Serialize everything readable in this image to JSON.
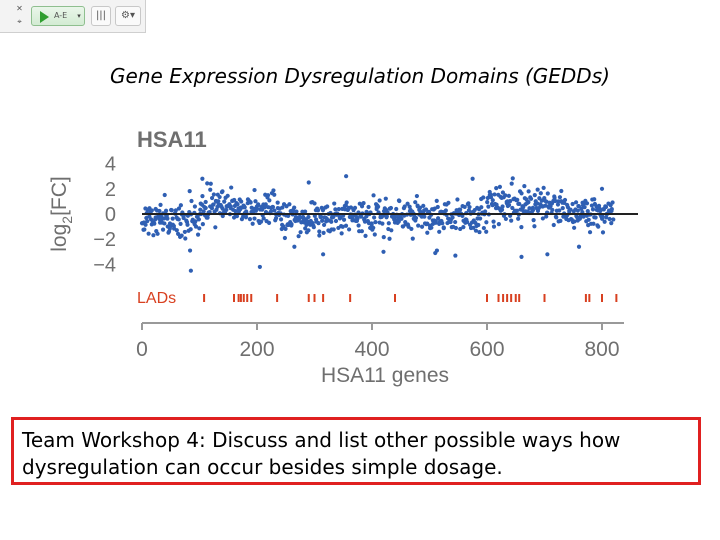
{
  "toolbar": {
    "play_label": "A-E",
    "dropdown_glyph": "▾",
    "columns_glyph": "|||",
    "settings_glyph": "⚙▾",
    "icons": [
      "close-icon",
      "pin-icon",
      "play-icon",
      "columns-icon",
      "settings-icon"
    ]
  },
  "slide": {
    "title": "Gene Expression Dysregulation Domains (GEDDs)",
    "workshop_text": "Team Workshop 4: Discuss and list other possible ways how dysregulation can occur besides simple dosage.",
    "workshop_border_color": "#e02020"
  },
  "chart_data": {
    "type": "scatter",
    "panel_label": "HSA11",
    "xlabel": "HSA11 genes",
    "ylabel_parts": [
      "log",
      "2",
      "[FC]"
    ],
    "xlim": [
      0,
      830
    ],
    "ylim": [
      -4.6,
      4.6
    ],
    "xticks": [
      0,
      200,
      400,
      600,
      800
    ],
    "yticks": [
      4,
      2,
      0,
      -2,
      -4
    ],
    "ytick_labels": [
      "4",
      "2",
      "0",
      "−2",
      "−4"
    ],
    "reference_line_y": 0,
    "point_color": "#2f5fb3",
    "lad_color": "#d84020",
    "lads_label": "LADs",
    "n_points": 830,
    "domains": [
      {
        "x": [
          0,
          100
        ],
        "mean": -0.4
      },
      {
        "x": [
          100,
          240
        ],
        "mean": 0.6
      },
      {
        "x": [
          240,
          600
        ],
        "mean": -0.3
      },
      {
        "x": [
          600,
          720
        ],
        "mean": 0.8
      },
      {
        "x": [
          720,
          820
        ],
        "mean": 0.1
      }
    ],
    "outliers": [
      {
        "x": 105,
        "y": 2.8
      },
      {
        "x": 140,
        "y": 1.8
      },
      {
        "x": 205,
        "y": -4.2
      },
      {
        "x": 265,
        "y": -2.6
      },
      {
        "x": 290,
        "y": 2.5
      },
      {
        "x": 315,
        "y": -3.2
      },
      {
        "x": 355,
        "y": 3.0
      },
      {
        "x": 420,
        "y": -3.0
      },
      {
        "x": 510,
        "y": -3.1
      },
      {
        "x": 545,
        "y": -3.3
      },
      {
        "x": 575,
        "y": 2.8
      },
      {
        "x": 660,
        "y": -3.4
      },
      {
        "x": 705,
        "y": -3.2
      },
      {
        "x": 760,
        "y": -2.6
      },
      {
        "x": 800,
        "y": 2.0
      },
      {
        "x": 85,
        "y": -4.5
      }
    ],
    "lads": [
      108,
      160,
      168,
      172,
      177,
      183,
      190,
      235,
      290,
      300,
      315,
      362,
      440,
      600,
      620,
      628,
      635,
      642,
      650,
      656,
      700,
      772,
      778,
      800,
      825
    ]
  }
}
